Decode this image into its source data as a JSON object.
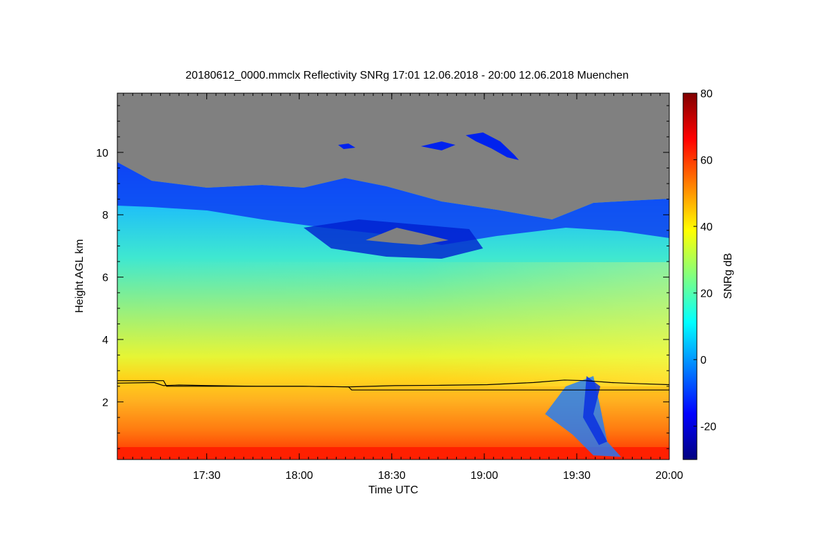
{
  "chart_data": {
    "type": "heatmap",
    "title": "20180612_0000.mmclx Reflectivity SNRg   17:01 12.06.2018 - 20:00 12.06.2018 Muenchen",
    "xlabel": "Time UTC",
    "ylabel": "Height AGL km",
    "colorbar_label": "SNRg dB",
    "x_ticks": [
      "17:30",
      "18:00",
      "18:30",
      "19:00",
      "19:30",
      "20:00"
    ],
    "x_tick_minutes": [
      29,
      59,
      89,
      119,
      149,
      179
    ],
    "xlim_minutes": [
      0,
      179
    ],
    "y_ticks": [
      2,
      4,
      6,
      8,
      10
    ],
    "ylim": [
      0.15,
      11.9
    ],
    "colorbar_ticks": [
      80,
      60,
      40,
      20,
      0,
      -20
    ],
    "colorbar_range": [
      -30,
      80
    ],
    "colormap": [
      "#00007f",
      "#0000ff",
      "#0080ff",
      "#00ffff",
      "#80ff80",
      "#ffff00",
      "#ff8000",
      "#ff0000",
      "#7f0000"
    ],
    "no_signal_color": "#808080",
    "grid": false,
    "lines": [
      {
        "x": [
          0,
          12,
          15,
          20,
          30,
          45,
          60,
          75,
          90,
          105,
          120,
          135,
          145,
          152,
          160,
          170,
          179
        ],
        "y": [
          2.6,
          2.62,
          2.52,
          2.54,
          2.52,
          2.5,
          2.5,
          2.48,
          2.52,
          2.53,
          2.55,
          2.62,
          2.7,
          2.68,
          2.62,
          2.58,
          2.55
        ]
      },
      {
        "x": [
          0,
          15,
          16,
          60,
          75,
          76,
          179
        ],
        "y": [
          2.68,
          2.68,
          2.5,
          2.5,
          2.48,
          2.38,
          2.38
        ]
      }
    ]
  }
}
